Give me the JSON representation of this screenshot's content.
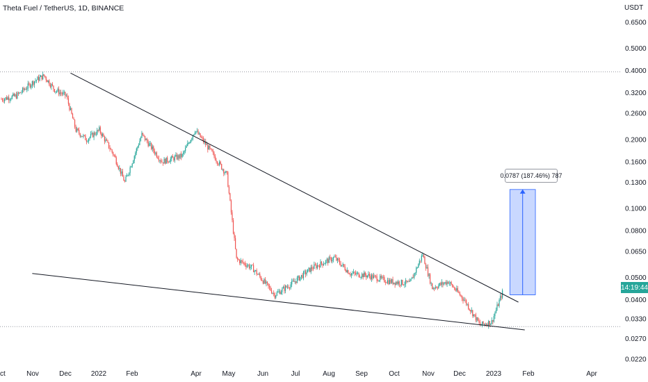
{
  "chart_data": {
    "type": "candlestick",
    "title": "Theta Fuel / TetherUS, 1D, BINANCE",
    "y_unit_label": "USDT",
    "y_scale": "log",
    "y_ticks": [
      "0.6500",
      "0.5000",
      "0.4000",
      "0.3200",
      "0.2600",
      "0.2000",
      "0.1600",
      "0.1300",
      "0.1000",
      "0.0800",
      "0.0650",
      "0.0500",
      "0.0400",
      "0.0330",
      "0.0270",
      "0.0220"
    ],
    "x_ticks": [
      "Oct",
      "Nov",
      "Dec",
      "2022",
      "Feb",
      "Apr",
      "May",
      "Jun",
      "Jul",
      "Aug",
      "Sep",
      "Oct",
      "Nov",
      "Dec",
      "2023",
      "Feb",
      "Apr"
    ],
    "price_series": [
      {
        "date": "2021-10-01",
        "close": 0.3
      },
      {
        "date": "2021-10-15",
        "close": 0.31
      },
      {
        "date": "2021-11-01",
        "close": 0.36
      },
      {
        "date": "2021-11-10",
        "close": 0.38
      },
      {
        "date": "2021-11-20",
        "close": 0.33
      },
      {
        "date": "2021-12-01",
        "close": 0.31
      },
      {
        "date": "2021-12-10",
        "close": 0.22
      },
      {
        "date": "2021-12-20",
        "close": 0.2
      },
      {
        "date": "2022-01-01",
        "close": 0.22
      },
      {
        "date": "2022-01-15",
        "close": 0.17
      },
      {
        "date": "2022-01-25",
        "close": 0.13
      },
      {
        "date": "2022-02-10",
        "close": 0.21
      },
      {
        "date": "2022-03-01",
        "close": 0.16
      },
      {
        "date": "2022-03-20",
        "close": 0.17
      },
      {
        "date": "2022-04-01",
        "close": 0.22
      },
      {
        "date": "2022-04-15",
        "close": 0.18
      },
      {
        "date": "2022-05-01",
        "close": 0.14
      },
      {
        "date": "2022-05-10",
        "close": 0.06
      },
      {
        "date": "2022-05-25",
        "close": 0.055
      },
      {
        "date": "2022-06-15",
        "close": 0.042
      },
      {
        "date": "2022-07-01",
        "close": 0.047
      },
      {
        "date": "2022-07-20",
        "close": 0.055
      },
      {
        "date": "2022-08-10",
        "close": 0.061
      },
      {
        "date": "2022-08-25",
        "close": 0.052
      },
      {
        "date": "2022-09-10",
        "close": 0.051
      },
      {
        "date": "2022-10-01",
        "close": 0.048
      },
      {
        "date": "2022-10-20",
        "close": 0.047
      },
      {
        "date": "2022-11-01",
        "close": 0.063
      },
      {
        "date": "2022-11-10",
        "close": 0.045
      },
      {
        "date": "2022-11-25",
        "close": 0.048
      },
      {
        "date": "2022-12-10",
        "close": 0.04
      },
      {
        "date": "2022-12-25",
        "close": 0.031
      },
      {
        "date": "2023-01-05",
        "close": 0.032
      },
      {
        "date": "2023-01-15",
        "close": 0.043
      }
    ],
    "trendlines": [
      {
        "from": {
          "date": "2021-12-05",
          "price": 0.39
        },
        "to": {
          "date": "2023-01-30",
          "price": 0.039
        }
      },
      {
        "from": {
          "date": "2021-10-30",
          "price": 0.052
        },
        "to": {
          "date": "2023-02-05",
          "price": 0.0295
        }
      }
    ],
    "horizontal_lines": [
      0.395,
      0.0305
    ],
    "measure_box": {
      "from": {
        "date": "2023-01-22",
        "price": 0.042
      },
      "to": {
        "date": "2023-02-15",
        "price": 0.121
      },
      "label": "0.0787 (187.46%) 787"
    },
    "last_price_label": "14:19:44"
  }
}
